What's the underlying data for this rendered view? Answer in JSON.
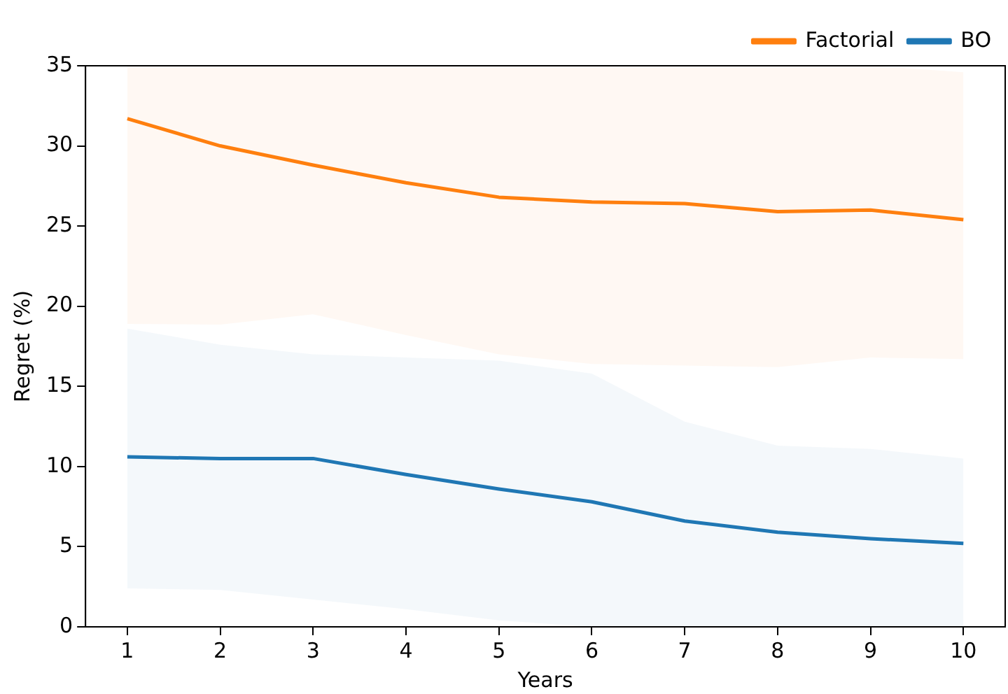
{
  "chart_data": {
    "type": "line",
    "xlabel": "Years",
    "ylabel": "Regret (%)",
    "x": [
      1,
      2,
      3,
      4,
      5,
      6,
      7,
      8,
      9,
      10
    ],
    "xlim": [
      0.55,
      10.45
    ],
    "xticks": [
      1,
      2,
      3,
      4,
      5,
      6,
      7,
      8,
      9,
      10
    ],
    "ylim": [
      0,
      35
    ],
    "yticks": [
      0,
      5,
      10,
      15,
      20,
      25,
      30,
      35
    ],
    "grid": false,
    "legend": "top right",
    "marker": "none",
    "line_style": "solid",
    "series": [
      {
        "name": "Factorial",
        "color": "#ff7f0e",
        "values": [
          31.7,
          30.0,
          28.8,
          27.7,
          26.8,
          26.5,
          26.4,
          25.9,
          26.0,
          25.4
        ],
        "lower": [
          18.9,
          18.85,
          19.5,
          18.2,
          17.0,
          16.4,
          16.3,
          16.2,
          16.8,
          16.7
        ],
        "upper": [
          35,
          35,
          35,
          35,
          35,
          35,
          35,
          35,
          35,
          34.6
        ]
      },
      {
        "name": "BO",
        "color": "#1f77b4",
        "values": [
          10.6,
          10.5,
          10.5,
          9.5,
          8.6,
          7.8,
          6.6,
          5.9,
          5.5,
          5.2
        ],
        "lower": [
          2.4,
          2.3,
          1.7,
          1.1,
          0.4,
          0,
          0,
          0,
          0,
          0
        ],
        "upper": [
          18.6,
          17.6,
          17.0,
          16.8,
          16.6,
          15.8,
          12.8,
          11.3,
          11.1,
          10.5
        ]
      }
    ]
  }
}
